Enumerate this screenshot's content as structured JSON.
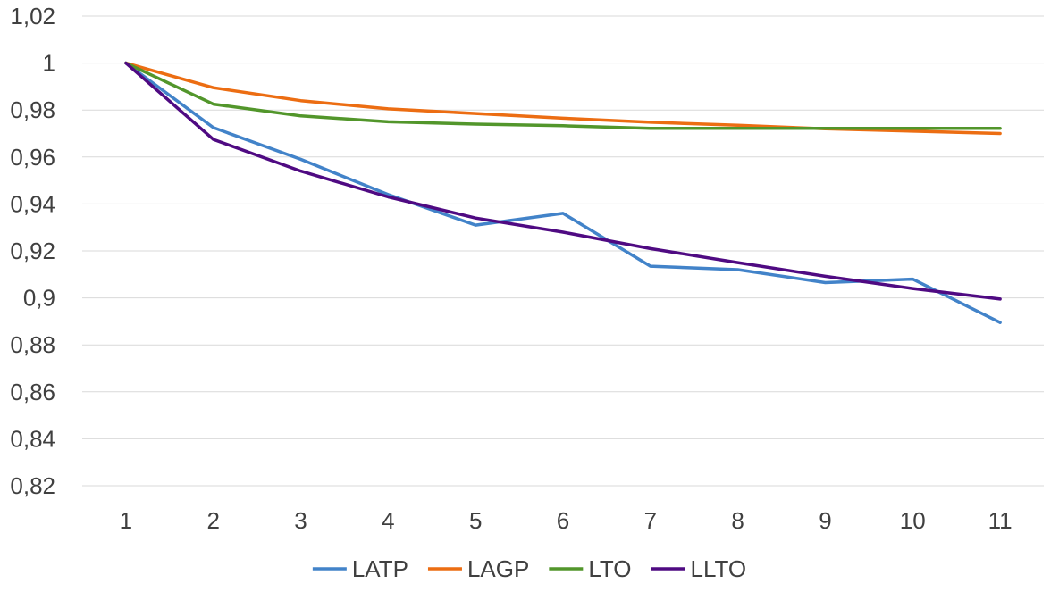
{
  "chart_data": {
    "type": "line",
    "title": "",
    "xlabel": "",
    "ylabel": "",
    "x": [
      1,
      2,
      3,
      4,
      5,
      6,
      7,
      8,
      9,
      10,
      11
    ],
    "x_tick_labels": [
      "1",
      "2",
      "3",
      "4",
      "5",
      "6",
      "7",
      "8",
      "9",
      "10",
      "11"
    ],
    "ylim": [
      0.82,
      1.02
    ],
    "y_ticks": [
      0.82,
      0.84,
      0.86,
      0.88,
      0.9,
      0.92,
      0.94,
      0.96,
      0.98,
      1,
      1.02
    ],
    "y_tick_labels": [
      "0,82",
      "0,84",
      "0,86",
      "0,88",
      "0,9",
      "0,92",
      "0,94",
      "0,96",
      "0,98",
      "1",
      "1,02"
    ],
    "grid": true,
    "legend_position": "bottom",
    "series": [
      {
        "name": "LATP",
        "color": "#4283c9",
        "values": [
          1.0,
          0.9725,
          0.959,
          0.944,
          0.931,
          0.936,
          0.9135,
          0.912,
          0.9065,
          0.908,
          0.8895
        ]
      },
      {
        "name": "LAGP",
        "color": "#ec6d12",
        "values": [
          1.0,
          0.9895,
          0.984,
          0.9805,
          0.9785,
          0.9765,
          0.9748,
          0.9735,
          0.972,
          0.971,
          0.97
        ]
      },
      {
        "name": "LTO",
        "color": "#52962b",
        "values": [
          1.0,
          0.9825,
          0.9775,
          0.975,
          0.974,
          0.9733,
          0.9722,
          0.9722,
          0.9722,
          0.9722,
          0.9722
        ]
      },
      {
        "name": "LLTO",
        "color": "#4f0a82",
        "values": [
          1.0,
          0.9675,
          0.954,
          0.943,
          0.934,
          0.928,
          0.921,
          0.915,
          0.9092,
          0.904,
          0.8995
        ]
      }
    ]
  }
}
